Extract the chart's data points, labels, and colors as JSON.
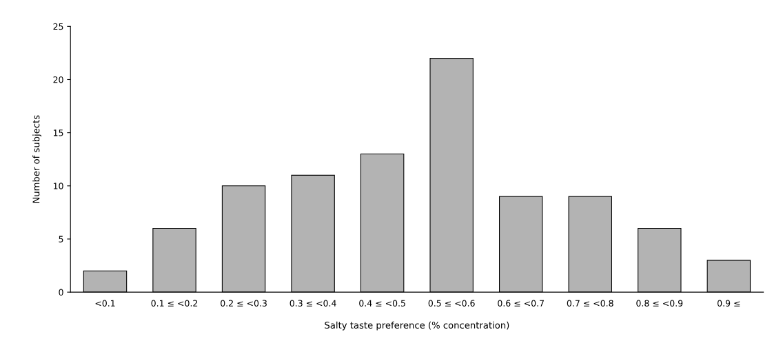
{
  "chart_data": {
    "type": "bar",
    "xlabel": "Salty taste preference (% concentration)",
    "ylabel": "Number of subjects",
    "categories": [
      "<0.1",
      "0.1 ≤ <0.2",
      "0.2 ≤ <0.3",
      "0.3 ≤ <0.4",
      "0.4 ≤ <0.5",
      "0.5 ≤ <0.6",
      "0.6 ≤ <0.7",
      "0.7 ≤ <0.8",
      "0.8 ≤ <0.9",
      "0.9 ≤"
    ],
    "values": [
      2,
      6,
      10,
      11,
      13,
      22,
      9,
      9,
      6,
      3
    ],
    "color": "#b3b3b3",
    "ylim": [
      0,
      25
    ],
    "yticks": [
      0,
      5,
      10,
      15,
      20,
      25
    ],
    "grid": false
  }
}
